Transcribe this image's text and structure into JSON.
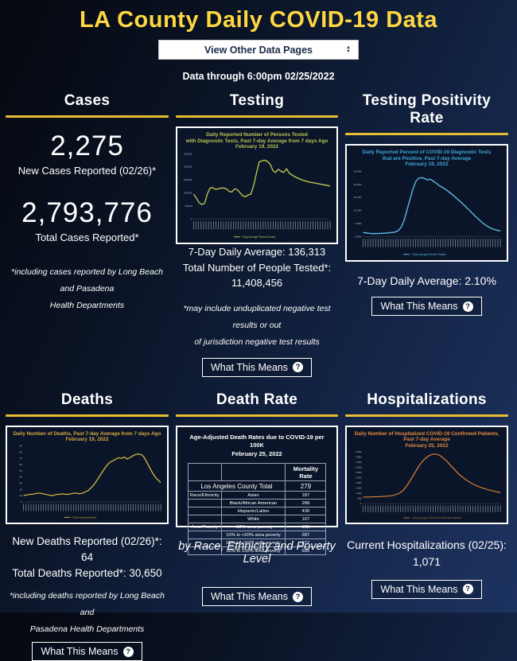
{
  "page": {
    "title": "LA County Daily COVID-19 Data",
    "dropdown_label": "View Other Data Pages",
    "data_through": "Data through 6:00pm 02/25/2022"
  },
  "buttons": {
    "what_this_means": "What This Means",
    "question_glyph": "?"
  },
  "colors": {
    "accent_yellow": "#ffd742",
    "divider_gold": "#e7bd34",
    "testing_line": "#b9c351",
    "positivity_line": "#5bb8de",
    "deaths_line": "#d4b83e",
    "hospitalizations_line": "#d87f35",
    "chart_background": "#0b1529"
  },
  "panels": {
    "cases": {
      "title": "Cases",
      "new_cases_value": "2,275",
      "new_cases_label": "New Cases Reported (02/26)*",
      "total_cases_value": "2,793,776",
      "total_cases_label": "Total Cases Reported*",
      "footnote": "*including cases reported by Long Beach and Pasadena\nHealth Departments"
    },
    "testing": {
      "title": "Testing",
      "stats": "7-Day Daily Average: 136,313\nTotal Number of People Tested*:\n11,408,456",
      "footnote": "*may include unduplicated negative test results or out\nof jurisdiction negative test results"
    },
    "positivity": {
      "title": "Testing Positivity Rate",
      "stats": "7-Day Daily Average: 2.10%"
    },
    "deaths": {
      "title": "Deaths",
      "stats": "New Deaths Reported (02/26)*: 64\nTotal Deaths Reported*: 30,650",
      "footnote": "*including deaths reported by Long Beach and\nPasadena Health Departments"
    },
    "death_rate": {
      "title": "Death Rate",
      "box_title": "Age-Adjusted Death Rates due to COVID-19 per 100K\nFebruary 25, 2022",
      "subtitle": "by Race, Ethnicity and Poverty Level",
      "table": {
        "value_header": "Mortality Rate",
        "total_label": "Los Angeles County Total",
        "total_value": "279",
        "rows": [
          {
            "group": "Race/Ethnicity",
            "label": "Asian",
            "value": "187"
          },
          {
            "group": "",
            "label": "Black/African American",
            "value": "288"
          },
          {
            "group": "",
            "label": "Hispanic/Latino",
            "value": "436"
          },
          {
            "group": "",
            "label": "White",
            "value": "167"
          },
          {
            "group": "Area Poverty",
            "label": "<10% area poverty",
            "value": "165"
          },
          {
            "group": "",
            "label": "10% to <20% area poverty",
            "value": "287"
          },
          {
            "group": "",
            "label": "20% to <30% area poverty",
            "value": "377"
          },
          {
            "group": "",
            "label": "30% to 100% area poverty",
            "value": "505"
          }
        ]
      }
    },
    "hospitalizations": {
      "title": "Hospitalizations",
      "stats": "Current Hospitalizations (02/25): 1,071"
    }
  },
  "chart_data": [
    {
      "id": "testing",
      "type": "line",
      "title": "Daily Reported Number of Persons Tested with Diagnostic Tests, Past 7-day Average from 7 days Ago, February 19, 2022",
      "title_display": "Daily Reported Number of Persons Tested\nwith Diagnostic Tests, Past 7-day Average from 7 days Ago\nFebruary 19, 2022",
      "legend": "7-Day Average Persons Tested",
      "legend_position": "bottom",
      "line_color": "#b9c351",
      "grid": false,
      "xlabel": "",
      "ylabel": "",
      "x_axis_note": "dense rotated daily date labels, illegible at this scale",
      "ylim": [
        0,
        250000
      ],
      "y_ticks_estimated": [
        "250,000",
        "200,000",
        "150,000",
        "100,000",
        "50,000",
        "0"
      ],
      "values": [
        95000,
        80000,
        62000,
        55000,
        60000,
        95000,
        118000,
        120000,
        113000,
        115000,
        118000,
        118000,
        115000,
        105000,
        103000,
        115000,
        112000,
        100000,
        88000,
        85000,
        92000,
        95000,
        130000,
        175000,
        218000,
        222000,
        225000,
        220000,
        210000,
        185000,
        178000,
        190000,
        182000,
        178000,
        192000,
        175000,
        168000,
        162000,
        157000,
        152000,
        148000,
        145000,
        142000,
        140000,
        138000,
        136000,
        134000,
        132000,
        130000,
        128000,
        126000
      ]
    },
    {
      "id": "positivity",
      "type": "line",
      "title": "Daily Reported Percent of COVID-19 Diagnostic Tests that are Positive, Past 7-day Average, February 19, 2022",
      "title_display": "Daily Reported Percent of COVID-19 Diagnostic Tests\nthat are Positive, Past 7-day Average\nFebruary 19, 2022",
      "legend": "7-Day Average Percent Positive",
      "legend_position": "bottom",
      "line_color": "#5bb8de",
      "grid": false,
      "xlabel": "",
      "ylabel": "",
      "x_axis_note": "dense rotated daily date labels, illegible at this scale",
      "ylim": [
        0,
        25
      ],
      "y_ticks_estimated": [
        "25.00%",
        "20.00%",
        "15.00%",
        "10.00%",
        "5.00%",
        "0.00%"
      ],
      "values": [
        1.5,
        1.3,
        1.2,
        1.1,
        1.1,
        1.1,
        1.2,
        1.2,
        1.3,
        1.4,
        1.5,
        1.7,
        2.2,
        3.5,
        6,
        10,
        14,
        18,
        21,
        22.3,
        22.5,
        22.2,
        21.6,
        21.9,
        21.2,
        20.4,
        19.5,
        18.8,
        18.2,
        17.3,
        16.5,
        15.6,
        14.6,
        13.6,
        12.6,
        11.5,
        10.4,
        9.3,
        8.2,
        7.1,
        6.1,
        5.1,
        4.3,
        3.6,
        3.0,
        2.6,
        2.3,
        2.1
      ]
    },
    {
      "id": "deaths",
      "type": "line",
      "title": "Daily Number of Deaths, Past 7-day Average from 7 days Ago, February 19, 2022",
      "title_display": "Daily Number of Deaths, Past 7-day Average from 7 days Ago\nFebruary 19, 2022",
      "legend": "7-Day Average Deaths",
      "legend_position": "bottom",
      "line_color": "#d4b83e",
      "grid": false,
      "xlabel": "",
      "ylabel": "",
      "x_axis_note": "dense rotated daily date labels, illegible at this scale",
      "ylim": [
        0,
        90
      ],
      "y_ticks_estimated": [
        "90",
        "80",
        "70",
        "60",
        "50",
        "40",
        "30",
        "20",
        "10",
        "0"
      ],
      "values": [
        10,
        11,
        12,
        12,
        13,
        14,
        14,
        13,
        12,
        11,
        10,
        11,
        12,
        12,
        13,
        12,
        12,
        13,
        14,
        14,
        13,
        14,
        16,
        18,
        22,
        27,
        33,
        40,
        47,
        54,
        60,
        64,
        66,
        69,
        71,
        70,
        72,
        69,
        71,
        74,
        76,
        77,
        76,
        72,
        64,
        55,
        47,
        40,
        35,
        31
      ]
    },
    {
      "id": "hospitalizations",
      "type": "line",
      "title": "Daily Number of Hospitalized COVID-19 Confirmed Patients, Past 7-day Average, February 25, 2022",
      "title_display": "Daily Number of Hospitalized COVID-19 Confirmed Patients,\nPast 7-day Average\nFebruary 25, 2022",
      "legend": "7-Day Average COVID-19 Confirmed Patients",
      "legend_position": "bottom",
      "line_color": "#d87f35",
      "grid": false,
      "xlabel": "",
      "ylabel": "",
      "x_axis_note": "dense rotated daily date labels, illegible at this scale",
      "ylim": [
        0,
        5000
      ],
      "y_ticks_estimated": [
        "5,000",
        "4,500",
        "4,000",
        "3,500",
        "3,000",
        "2,500",
        "2,000",
        "1,500",
        "1,000",
        "500",
        "0"
      ],
      "values": [
        650,
        640,
        650,
        660,
        670,
        680,
        700,
        720,
        750,
        800,
        900,
        1050,
        1300,
        1700,
        2200,
        2750,
        3300,
        3800,
        4200,
        4500,
        4700,
        4800,
        4780,
        4650,
        4400,
        4100,
        3750,
        3400,
        3050,
        2750,
        2480,
        2250,
        2050,
        1870,
        1720,
        1590,
        1480,
        1380,
        1290,
        1210,
        1140,
        1071
      ]
    }
  ]
}
